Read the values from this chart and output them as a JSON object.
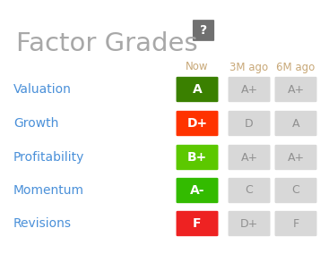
{
  "title": "Factor Grades",
  "bg_color": "#ffffff",
  "title_color": "#a8a8a8",
  "factor_color": "#4a90d9",
  "header_color": "#c8a878",
  "rows": [
    "Valuation",
    "Growth",
    "Profitability",
    "Momentum",
    "Revisions"
  ],
  "columns": [
    "Now",
    "3M ago",
    "6M ago"
  ],
  "now_grades": [
    "A",
    "D+",
    "B+",
    "A-",
    "F"
  ],
  "now_colors": [
    "#3a8000",
    "#ff3300",
    "#5cc800",
    "#33bb00",
    "#ee2222"
  ],
  "hist_grades": [
    [
      "A+",
      "A+"
    ],
    [
      "D",
      "A"
    ],
    [
      "A+",
      "A+"
    ],
    [
      "C",
      "C"
    ],
    [
      "D+",
      "F"
    ]
  ],
  "hist_bg": "#d8d8d8",
  "hist_text": "#909090",
  "question_bg": "#707070",
  "question_text": "#ffffff",
  "fig_width": 3.67,
  "fig_height": 2.93,
  "dpi": 100
}
